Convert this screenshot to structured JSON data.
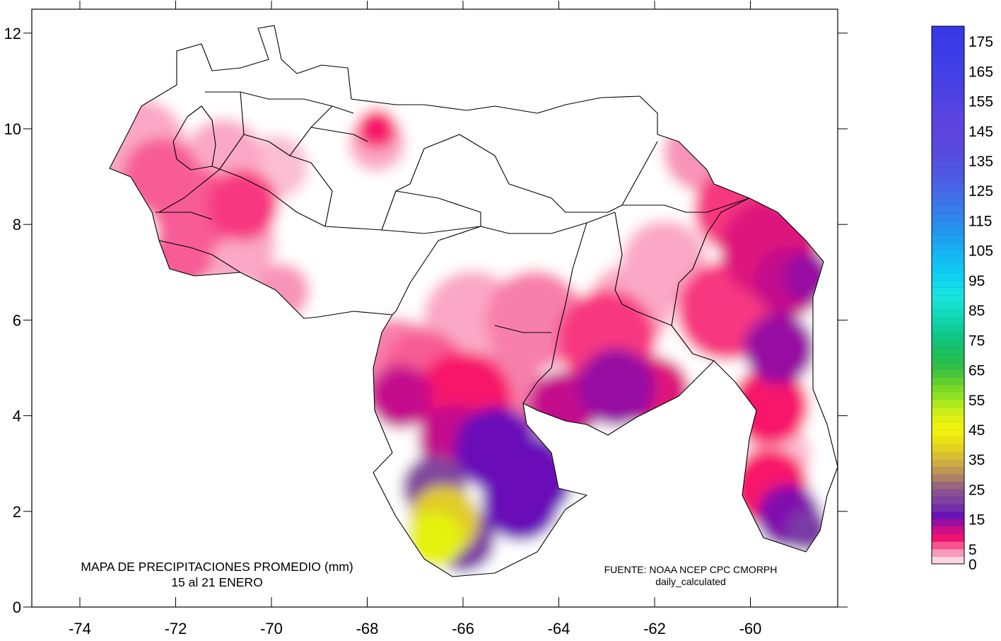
{
  "map": {
    "title_line1": "MAPA DE PRECIPITACIONES PROMEDIO (mm)",
    "title_line2": "15 al 21 ENERO",
    "source_line1": "FUENTE: NOAA NCEP CPC CMORPH",
    "source_line2": "daily_calculated",
    "x_ticks": [
      "-74",
      "-72",
      "-70",
      "-68",
      "-66",
      "-64",
      "-62",
      "-60"
    ],
    "y_ticks": [
      "0",
      "2",
      "4",
      "6",
      "8",
      "10",
      "12"
    ],
    "colorbar_labels": [
      "0",
      "5",
      "15",
      "25",
      "35",
      "45",
      "55",
      "65",
      "75",
      "85",
      "95",
      "105",
      "115",
      "125",
      "135",
      "145",
      "155",
      "165",
      "175"
    ]
  },
  "colors": {
    "c0": "#ffffff",
    "c2": "#fbbdd2",
    "c5": "#f77fab",
    "c8": "#f7146a",
    "c12": "#c40f8c",
    "c16": "#6a0fb8",
    "c25": "#8e5a8c",
    "c35": "#d4b53a",
    "c45": "#f5f50a",
    "c55": "#9be61e"
  }
}
